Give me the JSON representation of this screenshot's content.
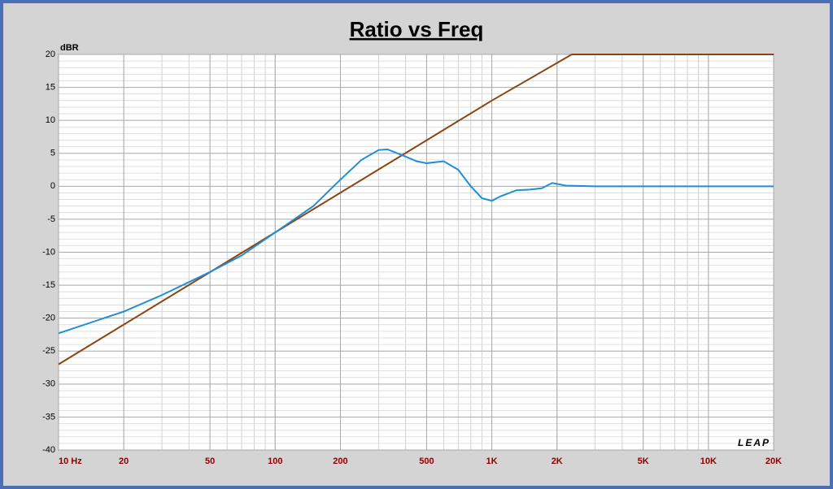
{
  "chart_data": {
    "type": "line",
    "title": "Ratio vs Freq",
    "y_label": "dBR",
    "logo": "LEAP",
    "xscale": "log",
    "xlim": [
      10,
      20000
    ],
    "ylim": [
      -40,
      20
    ],
    "grid": true,
    "xticks": [
      {
        "value": 10,
        "label": "10 Hz"
      },
      20,
      50,
      100,
      200,
      500,
      {
        "value": 1000,
        "label": "1K"
      },
      {
        "value": 2000,
        "label": "2K"
      },
      {
        "value": 5000,
        "label": "5K"
      },
      {
        "value": 10000,
        "label": "10K"
      },
      {
        "value": 20000,
        "label": "20K"
      }
    ],
    "yticks": [
      20,
      15,
      10,
      5,
      0,
      -5,
      -10,
      -15,
      -20,
      -25,
      -30,
      -35,
      -40
    ],
    "series": [
      {
        "color": "#8b4513",
        "x": [
          10,
          100,
          1000,
          2340,
          20000
        ],
        "values": [
          -27,
          -7,
          13,
          20,
          20
        ]
      },
      {
        "color": "#1e8fd6",
        "x": [
          10,
          20,
          30,
          50,
          70,
          100,
          150,
          200,
          250,
          300,
          330,
          400,
          450,
          500,
          600,
          700,
          800,
          900,
          1000,
          1100,
          1300,
          1500,
          1700,
          1900,
          2200,
          3000,
          5000,
          10000,
          20000
        ],
        "values": [
          -22.3,
          -19,
          -16.5,
          -13,
          -10.5,
          -7,
          -3,
          1,
          4,
          5.5,
          5.6,
          4.5,
          3.8,
          3.5,
          3.8,
          2.5,
          0,
          -1.8,
          -2.2,
          -1.5,
          -0.6,
          -0.5,
          -0.3,
          0.5,
          0.1,
          0,
          0,
          0,
          0
        ]
      }
    ]
  }
}
